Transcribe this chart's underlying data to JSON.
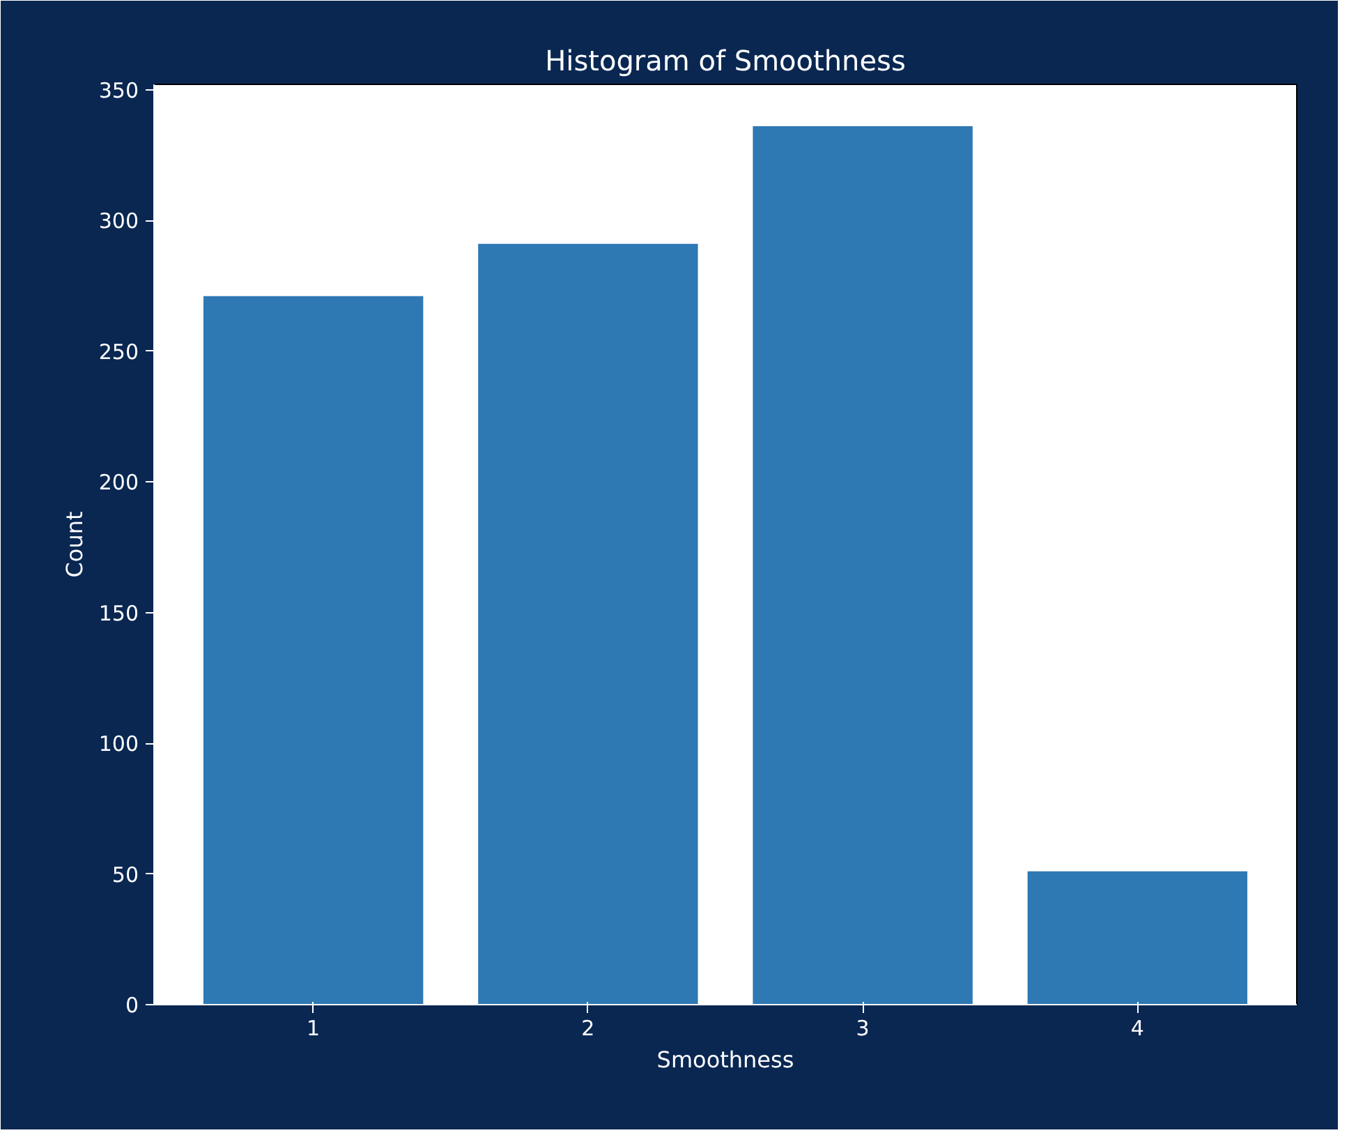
{
  "chart_data": {
    "type": "bar",
    "title": "Histogram of Smoothness",
    "xlabel": "Smoothness",
    "ylabel": "Count",
    "x": [
      1,
      2,
      3,
      4
    ],
    "values": [
      271,
      291,
      336,
      51
    ],
    "color": "#2e78b4",
    "xlim": [
      0.42,
      4.58
    ],
    "xticks": [
      1,
      2,
      3,
      4
    ],
    "ylim": [
      0,
      352
    ],
    "yticks": [
      0,
      50,
      100,
      150,
      200,
      250,
      300,
      350
    ],
    "grid": false
  }
}
